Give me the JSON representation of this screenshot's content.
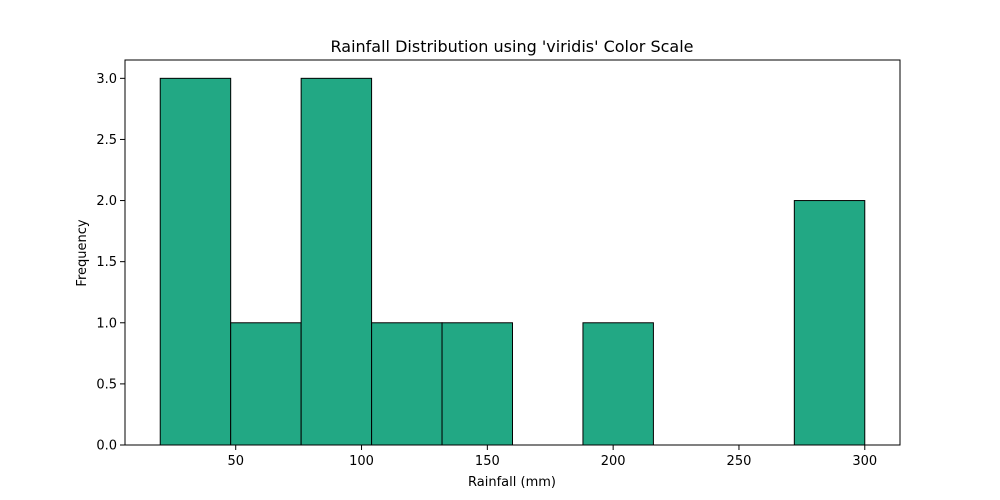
{
  "chart_data": {
    "type": "bar",
    "title": "Rainfall Distribution using 'viridis' Color Scale",
    "xlabel": "Rainfall (mm)",
    "ylabel": "Frequency",
    "xlim": [
      6,
      314
    ],
    "ylim": [
      0,
      3.15
    ],
    "bins": [
      {
        "start": 20.0,
        "end": 48.0,
        "count": 3
      },
      {
        "start": 48.0,
        "end": 76.0,
        "count": 1
      },
      {
        "start": 76.0,
        "end": 104.0,
        "count": 3
      },
      {
        "start": 104.0,
        "end": 132.0,
        "count": 1
      },
      {
        "start": 132.0,
        "end": 160.0,
        "count": 1
      },
      {
        "start": 160.0,
        "end": 188.0,
        "count": 0
      },
      {
        "start": 188.0,
        "end": 216.0,
        "count": 1
      },
      {
        "start": 216.0,
        "end": 244.0,
        "count": 0
      },
      {
        "start": 244.0,
        "end": 272.0,
        "count": 0
      },
      {
        "start": 272.0,
        "end": 300.0,
        "count": 2
      }
    ],
    "xticks": [
      50,
      100,
      150,
      200,
      250,
      300
    ],
    "yticks": [
      0.0,
      0.5,
      1.0,
      1.5,
      2.0,
      2.5,
      3.0
    ],
    "ytick_labels": [
      "0.0",
      "0.5",
      "1.0",
      "1.5",
      "2.0",
      "2.5",
      "3.0"
    ],
    "bar_color": "#22a884",
    "edge_color": "#000000",
    "grid": false,
    "legend": "none"
  }
}
